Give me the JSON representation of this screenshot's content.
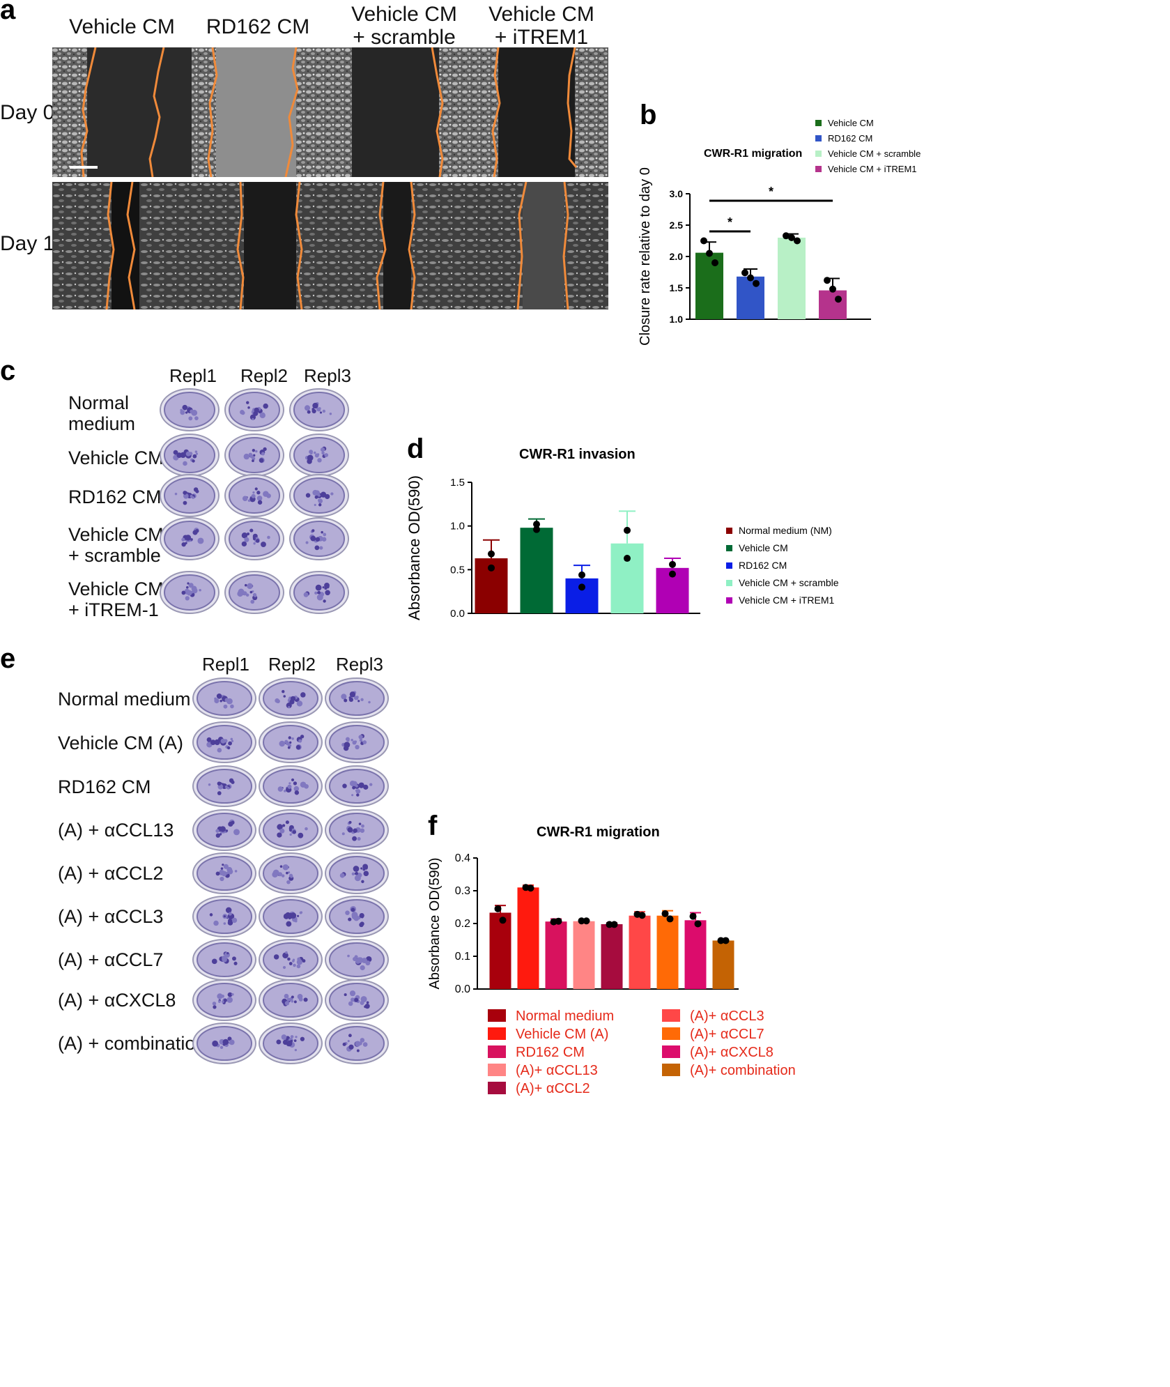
{
  "panel_letters": [
    "a",
    "b",
    "c",
    "d",
    "e",
    "f"
  ],
  "panel_a": {
    "columns": [
      "Vehicle CM",
      "RD162 CM",
      "Vehicle CM\n+ scramble",
      "Vehicle CM\n+ iTREM1"
    ],
    "rows": [
      "Day 0",
      "Day 1"
    ]
  },
  "panel_c": {
    "columns": [
      "Repl1",
      "Repl2",
      "Repl3"
    ],
    "rows": [
      "Normal\nmedium",
      "Vehicle CM",
      "RD162 CM",
      "Vehicle CM\n+ scramble",
      "Vehicle CM\n+ iTREM-1"
    ]
  },
  "panel_e": {
    "columns": [
      "Repl1",
      "Repl2",
      "Repl3"
    ],
    "rows": [
      "Normal medium",
      "Vehicle CM (A)",
      "RD162 CM",
      "(A) + αCCL13",
      "(A) + αCCL2",
      "(A) + αCCL3",
      "(A) + αCCL7",
      "(A) + αCXCL8",
      "(A) + combination"
    ]
  },
  "chart_data": [
    {
      "id": "b",
      "type": "bar",
      "title": "CWR-R1 migration",
      "ylabel": "Closure rate relative to day 0",
      "ylim": [
        1.0,
        3.0
      ],
      "yticks": [
        "1.0",
        "1.5",
        "2.0",
        "2.5",
        "3.0"
      ],
      "legend_position": "top-right",
      "categories": [
        "Vehicle CM",
        "RD162 CM",
        "Vehicle CM + scramble",
        "Vehicle CM + iTREM1"
      ],
      "values": [
        2.06,
        1.68,
        2.3,
        1.46
      ],
      "errors": [
        0.17,
        0.12,
        0.06,
        0.19
      ],
      "points": [
        [
          2.25,
          2.05,
          1.9
        ],
        [
          1.74,
          1.66,
          1.57
        ],
        [
          2.33,
          2.3,
          2.25
        ],
        [
          1.62,
          1.48,
          1.32
        ]
      ],
      "colors": [
        "#1b6e1b",
        "#3155c7",
        "#b8f0c6",
        "#b5338c"
      ],
      "significance": [
        {
          "between": [
            0,
            1
          ],
          "label": "*"
        },
        {
          "between": [
            0,
            3
          ],
          "label": "*"
        }
      ]
    },
    {
      "id": "d",
      "type": "bar",
      "title": "CWR-R1 invasion",
      "ylabel": "Absorbance OD(590)",
      "ylim": [
        0.0,
        1.5
      ],
      "yticks": [
        "0.0",
        "0.5",
        "1.0",
        "1.5"
      ],
      "legend_position": "right",
      "categories": [
        "Normal medium (NM)",
        "Vehicle CM",
        "RD162 CM",
        "Vehicle CM + scramble",
        "Vehicle CM + iTREM1"
      ],
      "values": [
        0.63,
        0.98,
        0.4,
        0.8,
        0.52
      ],
      "errors": [
        0.21,
        0.1,
        0.15,
        0.37,
        0.11
      ],
      "points": [
        [
          0.68,
          0.52
        ],
        [
          0.96,
          1.02
        ],
        [
          0.44,
          0.3
        ],
        [
          0.95,
          0.63
        ],
        [
          0.56,
          0.45
        ]
      ],
      "colors": [
        "#8b0000",
        "#006a35",
        "#0a1ee6",
        "#8ff0c4",
        "#b000b4"
      ]
    },
    {
      "id": "f",
      "type": "bar",
      "title": "CWR-R1 migration",
      "ylabel": "Absorbance OD(590)",
      "ylim": [
        0.0,
        0.4
      ],
      "yticks": [
        "0.0",
        "0.1",
        "0.2",
        "0.3",
        "0.4"
      ],
      "legend_position": "bottom",
      "categories": [
        "Normal medium",
        "Vehicle CM (A)",
        "RD162 CM",
        "(A)+ αCCL13",
        "(A)+ αCCL2",
        "(A)+ αCCL3",
        "(A)+ αCCL7",
        "(A)+ αCXCL8",
        "(A)+ combination"
      ],
      "values": [
        0.233,
        0.31,
        0.206,
        0.207,
        0.198,
        0.224,
        0.224,
        0.21,
        0.148
      ],
      "errors": [
        0.022,
        0.007,
        0.008,
        0.005,
        0.004,
        0.012,
        0.015,
        0.023,
        0.002
      ],
      "points": [
        [
          0.245,
          0.21
        ],
        [
          0.31,
          0.308
        ],
        [
          0.205,
          0.207
        ],
        [
          0.208,
          0.208
        ],
        [
          0.197,
          0.197
        ],
        [
          0.228,
          0.225
        ],
        [
          0.23,
          0.214
        ],
        [
          0.222,
          0.199
        ],
        [
          0.148,
          0.148
        ]
      ],
      "colors": [
        "#a8000c",
        "#ff1a0e",
        "#d8125e",
        "#ff8585",
        "#a60c3e",
        "#ff4747",
        "#ff6a06",
        "#dc0c6c",
        "#c46304"
      ],
      "legend_text_color": "#e52a1a"
    }
  ]
}
